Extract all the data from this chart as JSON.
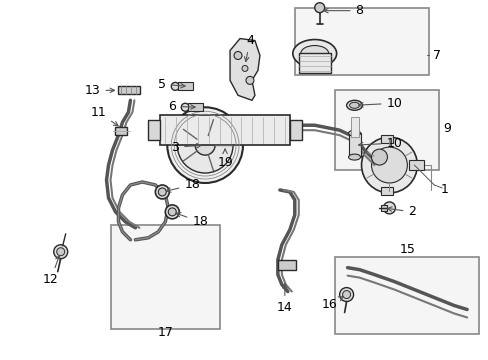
{
  "bg_color": "#ffffff",
  "fig_width": 4.89,
  "fig_height": 3.6,
  "dpi": 100,
  "line_color": "#2a2a2a",
  "label_color": "#000000",
  "arrow_color": "#555555",
  "box_fill": "#f5f5f5",
  "box_edge": "#888888"
}
